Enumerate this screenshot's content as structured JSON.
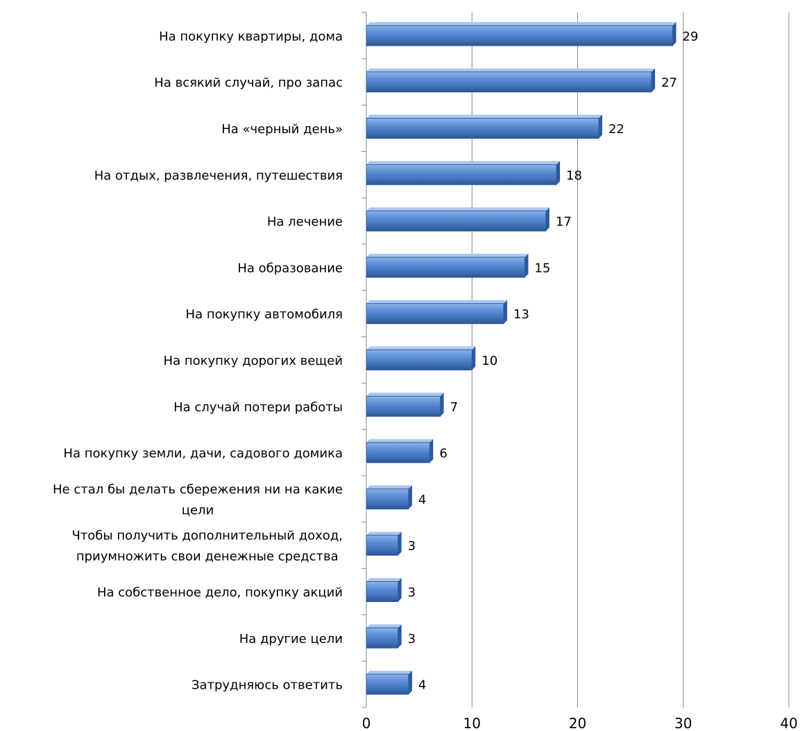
{
  "chart_data": {
    "type": "bar",
    "orientation": "horizontal",
    "title": "",
    "xlabel": "",
    "ylabel": "",
    "xlim": [
      0,
      40
    ],
    "x_ticks": [
      0,
      10,
      20,
      30,
      40
    ],
    "grid": "vertical",
    "legend": "none",
    "bar_color": "#4a7fc8",
    "categories": [
      [
        "На покупку квартиры, дома"
      ],
      [
        "На всякий случай, про запас"
      ],
      [
        "На «черный день»"
      ],
      [
        "На отдых, развлечения,  путешествия"
      ],
      [
        "На лечение"
      ],
      [
        "На образование"
      ],
      [
        "На покупку автомобиля"
      ],
      [
        "На покупку дорогих вещей"
      ],
      [
        "На случай потери работы"
      ],
      [
        "На покупку земли, дачи, садового домика"
      ],
      [
        "Не стал бы делать сбережения  ни на какие",
        "цели"
      ],
      [
        "Чтобы получить дополнительный  доход,",
        "приумножить   свои денежные  средства"
      ],
      [
        "На собственное дело,  покупку акций"
      ],
      [
        "На другие цели"
      ],
      [
        "Затрудняюсь ответить"
      ]
    ],
    "values": [
      29,
      27,
      22,
      18,
      17,
      15,
      13,
      10,
      7,
      6,
      4,
      3,
      3,
      3,
      4
    ]
  }
}
